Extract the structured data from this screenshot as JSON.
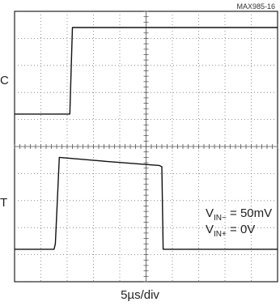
{
  "figure_id": "MAX985-16",
  "chart_data": {
    "type": "line",
    "title": "",
    "xlabel": "5µs/div",
    "ylabel": "",
    "xlim": [
      0,
      10
    ],
    "ylim": [
      -5,
      5
    ],
    "grid": true,
    "grid_divisions": {
      "x": 10,
      "y": 10
    },
    "channel_labels": [
      "C",
      "T"
    ],
    "annotations": [
      {
        "line1_main": "V",
        "line1_sub": "IN−",
        "line1_rest": " = 50mV"
      },
      {
        "line2_main": "V",
        "line2_sub": "IN+",
        "line2_rest": " = 0V"
      }
    ],
    "series": [
      {
        "name": "",
        "x": [
          0,
          2.0,
          2.1,
          2.2,
          10
        ],
        "y": [
          1.2,
          1.2,
          1.2,
          4.4,
          4.4
        ]
      },
      {
        "name": "",
        "x": [
          0,
          1.5,
          1.55,
          1.7,
          3.5,
          5.5,
          5.6,
          5.65,
          10
        ],
        "y": [
          -3.8,
          -3.8,
          -3.6,
          -0.4,
          -0.55,
          -0.7,
          -0.75,
          -3.8,
          -3.8
        ]
      }
    ]
  }
}
